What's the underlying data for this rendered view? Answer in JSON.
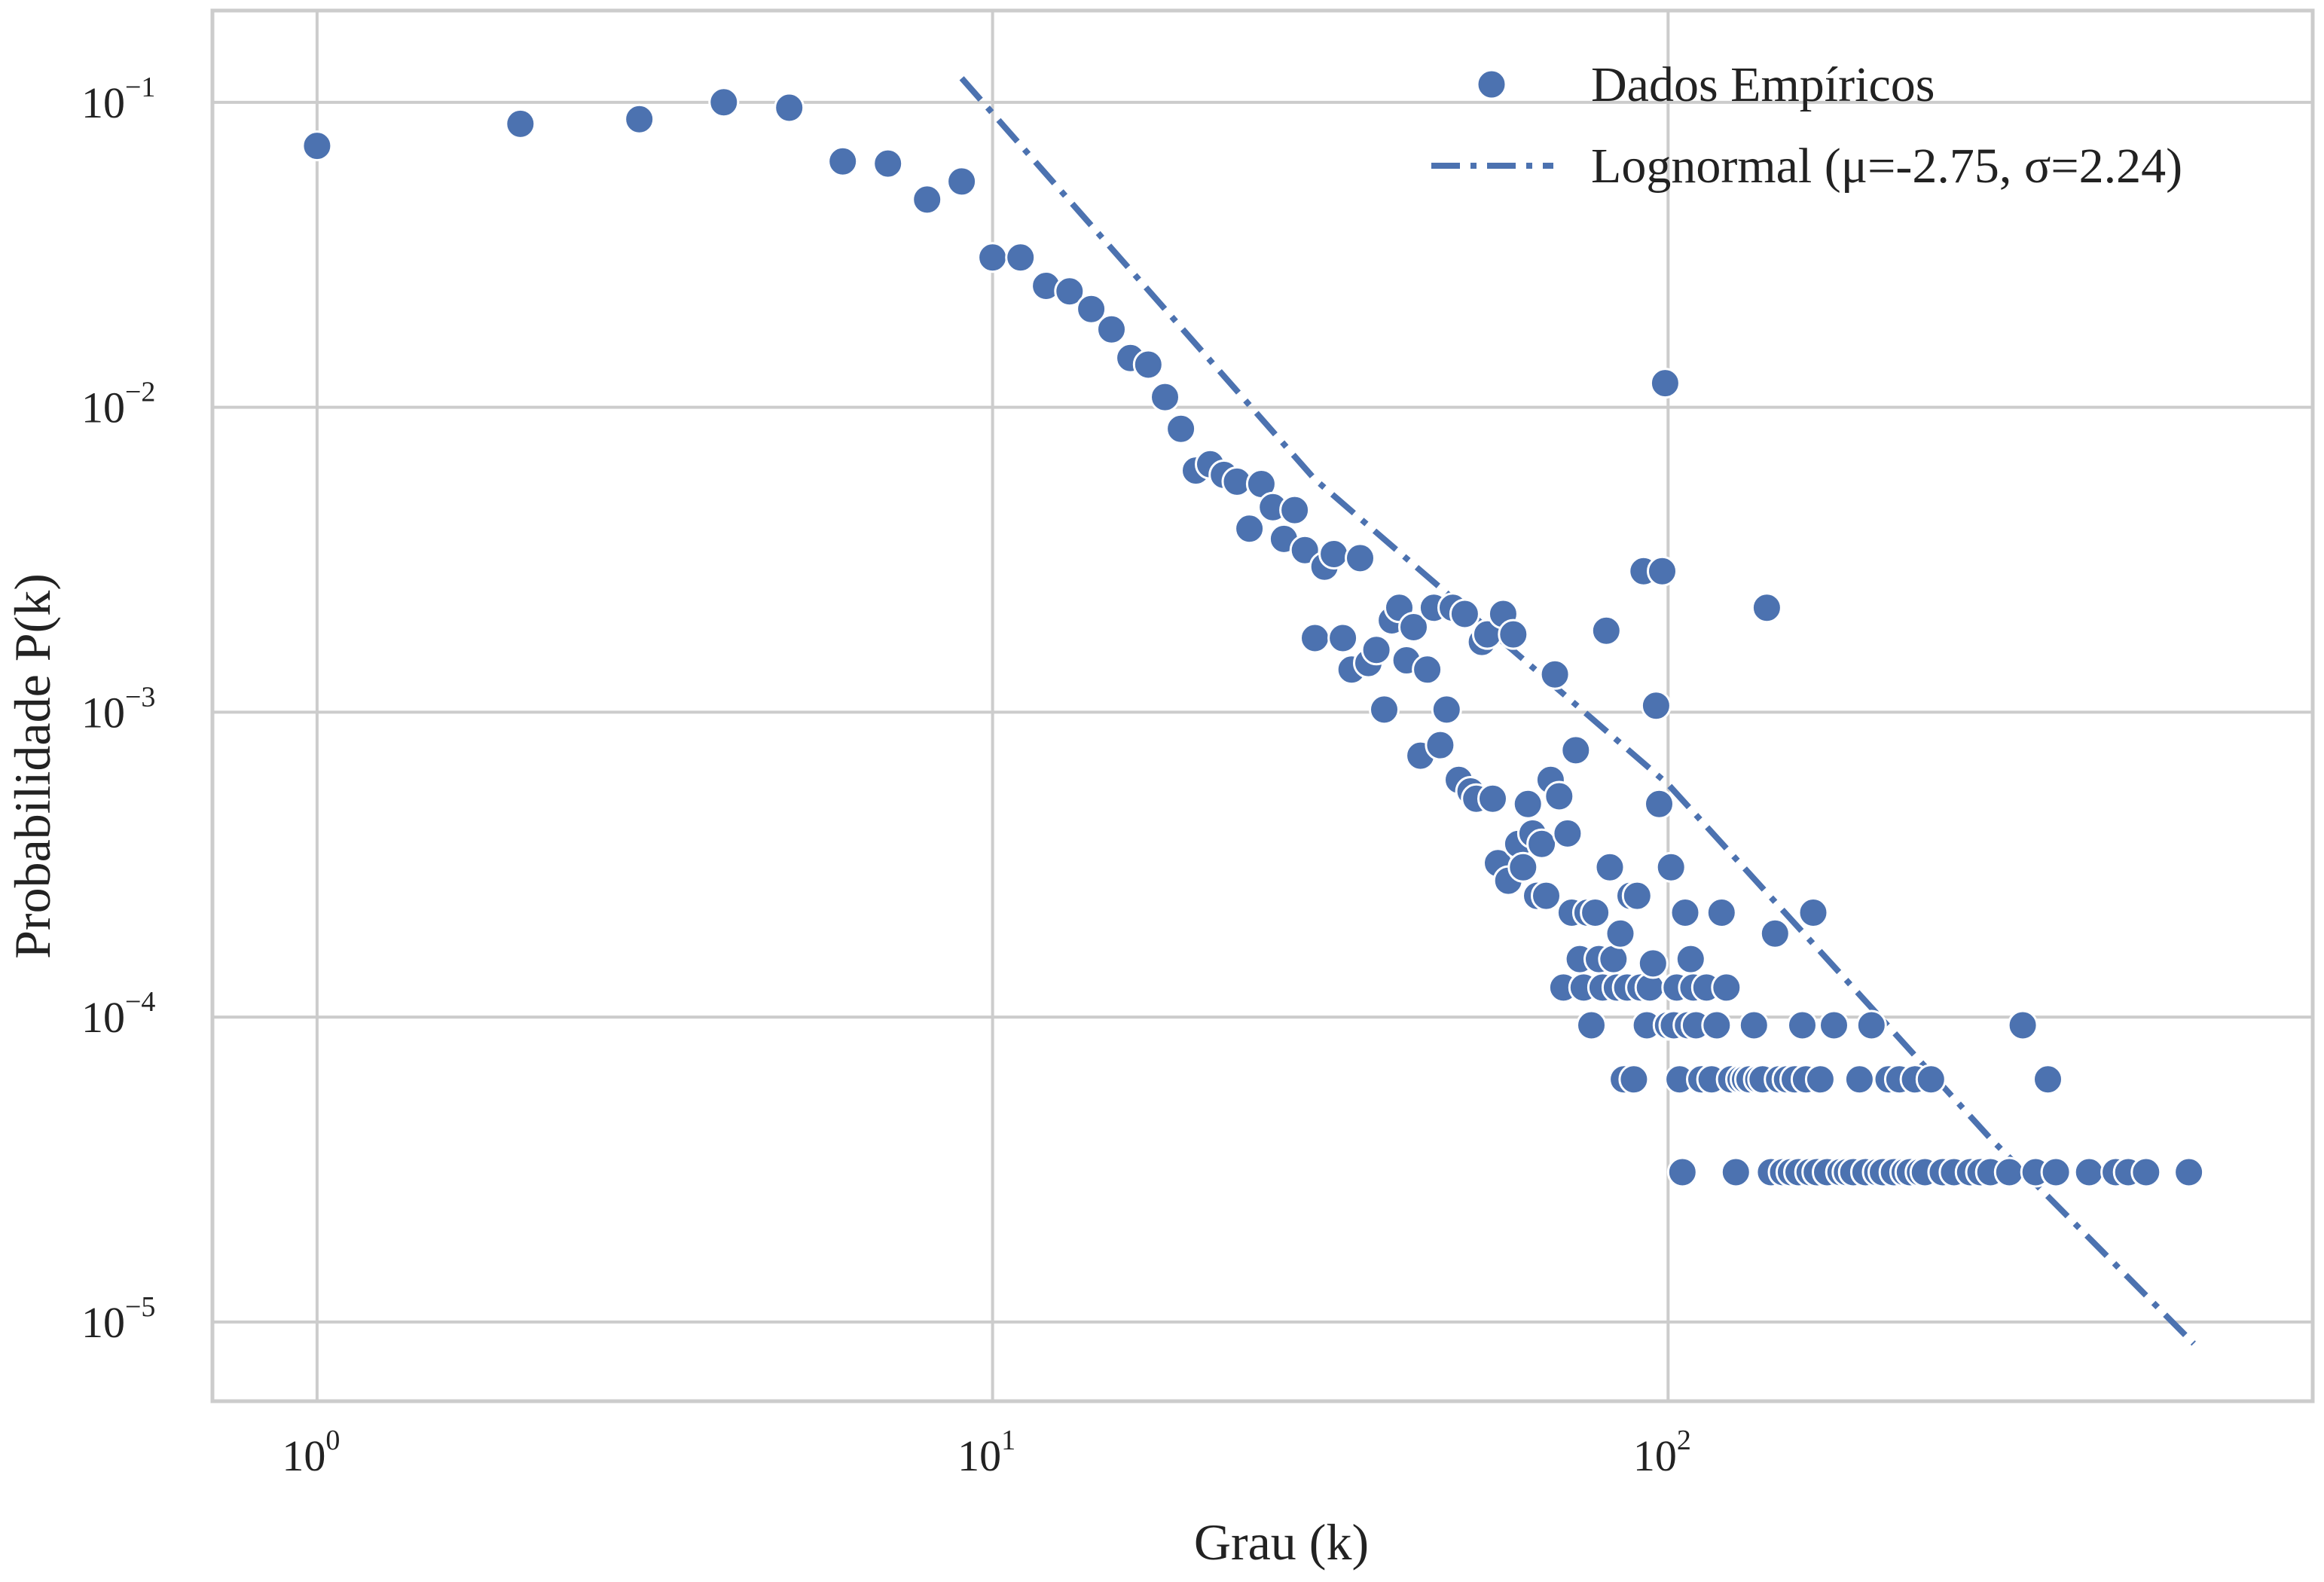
{
  "chart_data": {
    "type": "scatter",
    "xlabel": "Grau (k)",
    "ylabel": "Probabilidade P(k)",
    "xscale": "log",
    "yscale": "log",
    "xlim": [
      0.7,
      900
    ],
    "ylim": [
      5.5e-06,
      0.2
    ],
    "grid": true,
    "legend_position": "top-right",
    "xticks": [
      {
        "base": "10",
        "exp": "0",
        "value": 1
      },
      {
        "base": "10",
        "exp": "1",
        "value": 10
      },
      {
        "base": "10",
        "exp": "2",
        "value": 100
      }
    ],
    "yticks": [
      {
        "base": "10",
        "exp": "−1",
        "value": 0.1
      },
      {
        "base": "10",
        "exp": "−2",
        "value": 0.01
      },
      {
        "base": "10",
        "exp": "−3",
        "value": 0.001
      },
      {
        "base": "10",
        "exp": "−4",
        "value": 0.0001
      },
      {
        "base": "10",
        "exp": "−5",
        "value": 1e-05
      }
    ],
    "colors": {
      "series": "#4c72b0",
      "grid": "#cccccc",
      "frame": "#cccccc"
    },
    "series": [
      {
        "name": "Dados Empíricos",
        "kind": "scatter",
        "points": [
          [
            1,
            0.072
          ],
          [
            2,
            0.085
          ],
          [
            3,
            0.088
          ],
          [
            4,
            0.1
          ],
          [
            5,
            0.096
          ],
          [
            6,
            0.064
          ],
          [
            7,
            0.063
          ],
          [
            8,
            0.048
          ],
          [
            9,
            0.055
          ],
          [
            10,
            0.031
          ],
          [
            11,
            0.031
          ],
          [
            12,
            0.025
          ],
          [
            13,
            0.024
          ],
          [
            14,
            0.021
          ],
          [
            15,
            0.018
          ],
          [
            16,
            0.0145
          ],
          [
            17,
            0.0138
          ],
          [
            18,
            0.0108
          ],
          [
            19,
            0.0085
          ],
          [
            20,
            0.0062
          ],
          [
            21,
            0.0065
          ],
          [
            22,
            0.006
          ],
          [
            23,
            0.0057
          ],
          [
            24,
            0.004
          ],
          [
            25,
            0.0056
          ],
          [
            26,
            0.0047
          ],
          [
            27,
            0.0037
          ],
          [
            28,
            0.0046
          ],
          [
            29,
            0.0034
          ],
          [
            30,
            0.00175
          ],
          [
            31,
            0.003
          ],
          [
            32,
            0.0033
          ],
          [
            33,
            0.00175
          ],
          [
            34,
            0.00138
          ],
          [
            35,
            0.0032
          ],
          [
            36,
            0.00145
          ],
          [
            37,
            0.0016
          ],
          [
            38,
            0.00102
          ],
          [
            39,
            0.002
          ],
          [
            40,
            0.0022
          ],
          [
            41,
            0.00148
          ],
          [
            42,
            0.0019
          ],
          [
            43,
            0.00072
          ],
          [
            44,
            0.00138
          ],
          [
            45,
            0.0022
          ],
          [
            46,
            0.00078
          ],
          [
            47,
            0.00102
          ],
          [
            48,
            0.0022
          ],
          [
            49,
            0.0006
          ],
          [
            50,
            0.0021
          ],
          [
            51,
            0.00055
          ],
          [
            52,
            0.00052
          ],
          [
            53,
            0.0017
          ],
          [
            54,
            0.0018
          ],
          [
            55,
            0.00052
          ],
          [
            56,
            0.00032
          ],
          [
            57,
            0.0021
          ],
          [
            58,
            0.00028
          ],
          [
            59,
            0.0018
          ],
          [
            60,
            0.00037
          ],
          [
            61,
            0.00031
          ],
          [
            62,
            0.0005
          ],
          [
            63,
            0.0004
          ],
          [
            64,
            0.00025
          ],
          [
            65,
            0.00037
          ],
          [
            66,
            0.00025
          ],
          [
            67,
            0.0006
          ],
          [
            68,
            0.00133
          ],
          [
            69,
            0.00053
          ],
          [
            70,
            0.000125
          ],
          [
            71,
            0.0004
          ],
          [
            72,
            0.00022
          ],
          [
            73,
            0.00075
          ],
          [
            74,
            0.000155
          ],
          [
            75,
            0.000125
          ],
          [
            76,
            0.00022
          ],
          [
            77,
            9.4e-05
          ],
          [
            78,
            0.00022
          ],
          [
            79,
            0.000155
          ],
          [
            80,
            0.000125
          ],
          [
            81,
            0.00185
          ],
          [
            82,
            0.00031
          ],
          [
            83,
            0.000155
          ],
          [
            84,
            0.000125
          ],
          [
            85,
            0.000188
          ],
          [
            86,
            6.25e-05
          ],
          [
            87,
            0.000125
          ],
          [
            88,
            0.00025
          ],
          [
            89,
            6.25e-05
          ],
          [
            90,
            0.00025
          ],
          [
            91,
            0.000125
          ],
          [
            92,
            0.0029
          ],
          [
            93,
            9.4e-05
          ],
          [
            94,
            0.000125
          ],
          [
            95,
            0.00015
          ],
          [
            96,
            0.00105
          ],
          [
            97,
            0.0005
          ],
          [
            98,
            0.0029
          ],
          [
            99,
            0.012
          ],
          [
            100,
            9.4e-05
          ],
          [
            101,
            0.00031
          ],
          [
            102,
            9.4e-05
          ],
          [
            103,
            0.000125
          ],
          [
            104,
            6.25e-05
          ],
          [
            105,
            3.1e-05
          ],
          [
            106,
            0.00022
          ],
          [
            107,
            9.4e-05
          ],
          [
            108,
            0.000155
          ],
          [
            109,
            0.000125
          ],
          [
            110,
            9.4e-05
          ],
          [
            112,
            6.25e-05
          ],
          [
            114,
            0.000125
          ],
          [
            116,
            6.25e-05
          ],
          [
            118,
            9.4e-05
          ],
          [
            120,
            0.00022
          ],
          [
            122,
            0.000125
          ],
          [
            124,
            6.25e-05
          ],
          [
            126,
            3.1e-05
          ],
          [
            128,
            6.25e-05
          ],
          [
            130,
            6.25e-05
          ],
          [
            132,
            6.25e-05
          ],
          [
            134,
            9.4e-05
          ],
          [
            136,
            6.25e-05
          ],
          [
            138,
            6.25e-05
          ],
          [
            140,
            0.0022
          ],
          [
            142,
            3.1e-05
          ],
          [
            144,
            0.000188
          ],
          [
            146,
            6.25e-05
          ],
          [
            148,
            3.1e-05
          ],
          [
            150,
            6.25e-05
          ],
          [
            152,
            3.1e-05
          ],
          [
            154,
            6.25e-05
          ],
          [
            156,
            3.1e-05
          ],
          [
            158,
            9.4e-05
          ],
          [
            160,
            6.25e-05
          ],
          [
            162,
            3.1e-05
          ],
          [
            164,
            0.00022
          ],
          [
            166,
            3.1e-05
          ],
          [
            168,
            6.25e-05
          ],
          [
            172,
            3.1e-05
          ],
          [
            176,
            9.4e-05
          ],
          [
            180,
            3.1e-05
          ],
          [
            184,
            3.1e-05
          ],
          [
            188,
            3.1e-05
          ],
          [
            192,
            6.25e-05
          ],
          [
            196,
            3.1e-05
          ],
          [
            200,
            9.4e-05
          ],
          [
            204,
            3.1e-05
          ],
          [
            208,
            3.1e-05
          ],
          [
            212,
            6.25e-05
          ],
          [
            216,
            3.1e-05
          ],
          [
            220,
            6.25e-05
          ],
          [
            224,
            3.1e-05
          ],
          [
            228,
            3.1e-05
          ],
          [
            232,
            6.25e-05
          ],
          [
            236,
            3.1e-05
          ],
          [
            240,
            3.1e-05
          ],
          [
            245,
            6.25e-05
          ],
          [
            255,
            3.1e-05
          ],
          [
            265,
            3.1e-05
          ],
          [
            280,
            3.1e-05
          ],
          [
            290,
            3.1e-05
          ],
          [
            300,
            3.1e-05
          ],
          [
            320,
            3.1e-05
          ],
          [
            335,
            9.4e-05
          ],
          [
            350,
            3.1e-05
          ],
          [
            365,
            6.25e-05
          ],
          [
            375,
            3.1e-05
          ],
          [
            420,
            3.1e-05
          ],
          [
            460,
            3.1e-05
          ],
          [
            480,
            3.1e-05
          ],
          [
            510,
            3.1e-05
          ],
          [
            590,
            3.1e-05
          ]
        ]
      },
      {
        "name": "Lognormal (μ=-2.75, σ=2.24)",
        "kind": "line",
        "style": "dashdot",
        "points": [
          [
            9,
            0.12
          ],
          [
            30,
            0.0058
          ],
          [
            100,
            0.00058
          ],
          [
            300,
            4e-05
          ],
          [
            600,
            8.5e-06
          ]
        ]
      }
    ]
  }
}
